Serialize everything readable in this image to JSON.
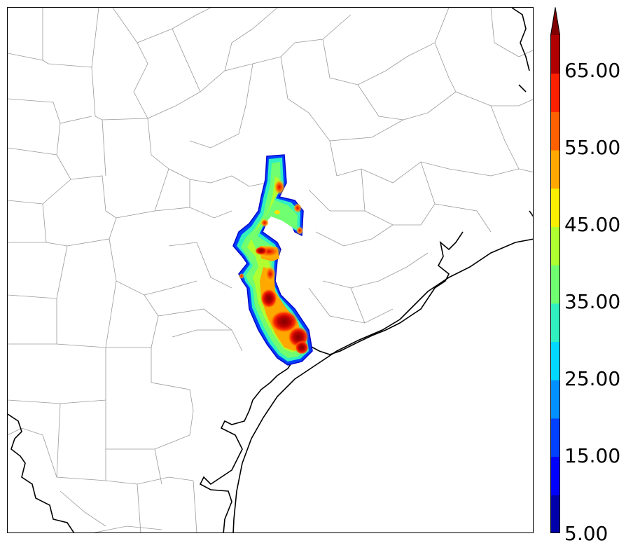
{
  "colorbar": {
    "labels": [
      "5.00",
      "15.00",
      "25.00",
      "35.00",
      "45.00",
      "55.00",
      "65.00"
    ],
    "colors": [
      "#0000aa",
      "#0000ff",
      "#0040ff",
      "#0090ff",
      "#00d8ff",
      "#30f0c0",
      "#70ff70",
      "#b0ff30",
      "#f8f000",
      "#ffa800",
      "#ff6000",
      "#ff2000",
      "#b00000",
      "#800000"
    ]
  },
  "map": {
    "coastline_color": "#000000",
    "county_color": "#9a9a9a"
  }
}
